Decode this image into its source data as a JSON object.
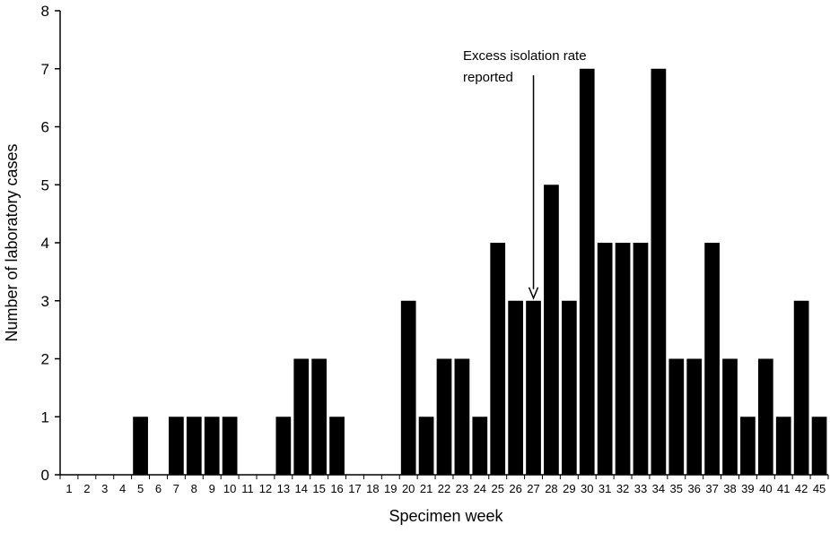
{
  "chart_data": {
    "type": "bar",
    "title": "",
    "xlabel": "Specimen week",
    "ylabel": "Number of laboratory cases",
    "ylim": [
      0,
      8
    ],
    "yticks": [
      0,
      1,
      2,
      3,
      4,
      5,
      6,
      7,
      8
    ],
    "grid": false,
    "categories": [
      "1",
      "2",
      "3",
      "4",
      "5",
      "6",
      "7",
      "8",
      "9",
      "10",
      "11",
      "12",
      "13",
      "14",
      "15",
      "16",
      "17",
      "18",
      "19",
      "20",
      "21",
      "22",
      "23",
      "24",
      "25",
      "26",
      "27",
      "28",
      "29",
      "30",
      "31",
      "32",
      "33",
      "34",
      "35",
      "36",
      "37",
      "38",
      "39",
      "40",
      "41",
      "42",
      "45"
    ],
    "values": [
      0,
      0,
      0,
      0,
      1,
      0,
      1,
      1,
      1,
      1,
      0,
      0,
      1,
      2,
      2,
      1,
      0,
      0,
      0,
      3,
      1,
      2,
      2,
      1,
      4,
      3,
      3,
      5,
      3,
      7,
      4,
      4,
      4,
      7,
      2,
      2,
      4,
      2,
      1,
      2,
      1,
      3,
      1
    ],
    "annotation": {
      "line1": "Excess isolation rate",
      "line2": "reported",
      "week": "27",
      "value": 3
    },
    "colors": {
      "bar": "#000000",
      "axis": "#000000"
    }
  }
}
